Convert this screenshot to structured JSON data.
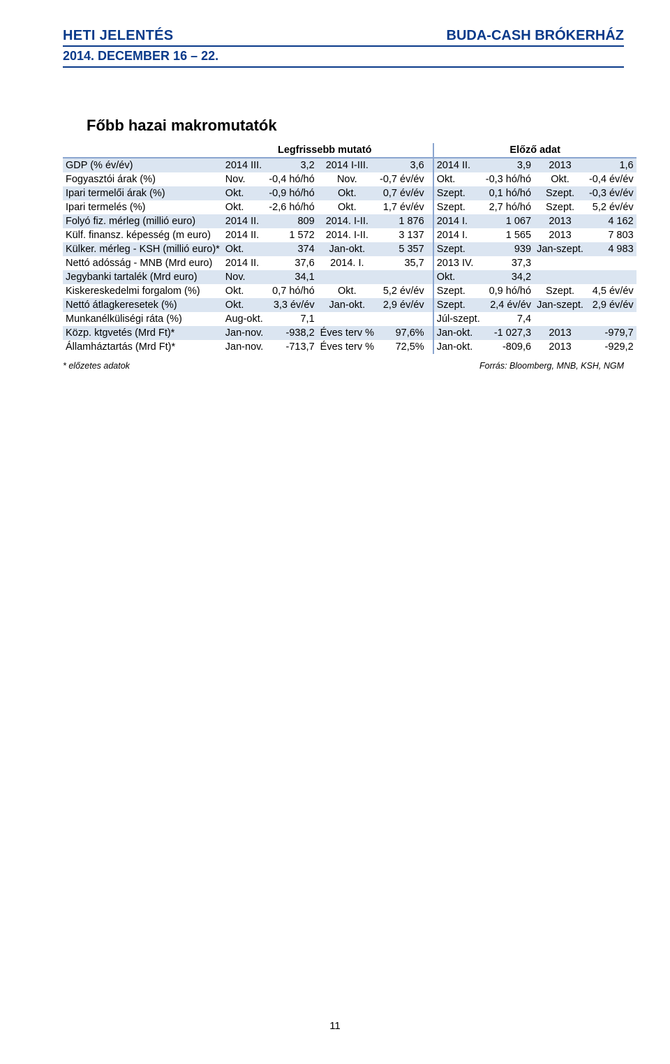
{
  "header": {
    "left_word1": "H",
    "left_rest1": "ETI",
    "left_word2": "J",
    "left_rest2": "ELENTÉS",
    "right_word1": "B",
    "right_rest1": "UDA",
    "right_dash": "-C",
    "right_rest2": "ASH",
    "right_word3": "B",
    "right_rest3": "RÓKERHÁZ",
    "sub": "2014. DECEMBER 16 – 22."
  },
  "section_title": "Főbb hazai makromutatók",
  "table": {
    "header_left": "Legfrissebb mutató",
    "header_right": "Előző adat",
    "rows": [
      {
        "label": "GDP (% év/év)",
        "a": "2014 III.",
        "b": "3,2",
        "c": "2014 I-III.",
        "d": "3,6",
        "e": "2014 II.",
        "f": "3,9",
        "g": "2013",
        "h": "1,6"
      },
      {
        "label": "Fogyasztói árak (%)",
        "a": "Nov.",
        "b": "-0,4 hó/hó",
        "c": "Nov.",
        "d": "-0,7 év/év",
        "e": "Okt.",
        "f": "-0,3 hó/hó",
        "g": "Okt.",
        "h": "-0,4 év/év"
      },
      {
        "label": "Ipari termelői árak (%)",
        "a": "Okt.",
        "b": "-0,9 hó/hó",
        "c": "Okt.",
        "d": "0,7 év/év",
        "e": "Szept.",
        "f": "0,1 hó/hó",
        "g": "Szept.",
        "h": "-0,3 év/év"
      },
      {
        "label": "Ipari termelés (%)",
        "a": "Okt.",
        "b": "-2,6 hó/hó",
        "c": "Okt.",
        "d": "1,7 év/év",
        "e": "Szept.",
        "f": "2,7 hó/hó",
        "g": "Szept.",
        "h": "5,2 év/év"
      },
      {
        "label": "Folyó fiz. mérleg (millió euro)",
        "a": "2014 II.",
        "b": "809",
        "c": "2014. I-II.",
        "d": "1 876",
        "e": "2014 I.",
        "f": "1 067",
        "g": "2013",
        "h": "4 162"
      },
      {
        "label": "Külf. finansz. képesség (m euro)",
        "a": "2014 II.",
        "b": "1 572",
        "c": "2014. I-II.",
        "d": "3 137",
        "e": "2014 I.",
        "f": "1 565",
        "g": "2013",
        "h": "7 803"
      },
      {
        "label": "Külker. mérleg - KSH (millió euro)*",
        "a": "Okt.",
        "b": "374",
        "c": "Jan-okt.",
        "d": "5 357",
        "e": "Szept.",
        "f": "939",
        "g": "Jan-szept.",
        "h": "4 983"
      },
      {
        "label": "Nettó adósság - MNB (Mrd euro)",
        "a": "2014 II.",
        "b": "37,6",
        "c": "2014. I.",
        "d": "35,7",
        "e": "2013 IV.",
        "f": "37,3",
        "g": "",
        "h": ""
      },
      {
        "label": "Jegybanki tartalék (Mrd euro)",
        "a": "Nov.",
        "b": "34,1",
        "c": "",
        "d": "",
        "e": "Okt.",
        "f": "34,2",
        "g": "",
        "h": ""
      },
      {
        "label": "Kiskereskedelmi forgalom (%)",
        "a": "Okt.",
        "b": "0,7 hó/hó",
        "c": "Okt.",
        "d": "5,2 év/év",
        "e": "Szept.",
        "f": "0,9 hó/hó",
        "g": "Szept.",
        "h": "4,5 év/év"
      },
      {
        "label": "Nettó átlagkeresetek (%)",
        "a": "Okt.",
        "b": "3,3 év/év",
        "c": "Jan-okt.",
        "d": "2,9 év/év",
        "e": "Szept.",
        "f": "2,4 év/év",
        "g": "Jan-szept.",
        "h": "2,9 év/év"
      },
      {
        "label": "Munkanélküliségi ráta (%)",
        "a": "Aug-okt.",
        "b": "7,1",
        "c": "",
        "d": "",
        "e": "Júl-szept.",
        "f": "7,4",
        "g": "",
        "h": ""
      },
      {
        "label": "Közp. ktgvetés (Mrd Ft)*",
        "a": "Jan-nov.",
        "b": "-938,2",
        "c": "Éves terv %",
        "d": "97,6%",
        "e": "Jan-okt.",
        "f": "-1 027,3",
        "g": "2013",
        "h": "-979,7"
      },
      {
        "label": "Államháztartás (Mrd Ft)*",
        "a": "Jan-nov.",
        "b": "-713,7",
        "c": "Éves terv %",
        "d": "72,5%",
        "e": "Jan-okt.",
        "f": "-809,6",
        "g": "2013",
        "h": "-929,2"
      }
    ],
    "footnote_left": "* előzetes adatok",
    "footnote_right": "Forrás: Bloomberg, MNB, KSH, NGM"
  },
  "page_number": "11",
  "colors": {
    "brand": "#0a3a8a",
    "band_even": "#dbe5f1",
    "band_odd": "#ffffff",
    "sep": "#8aa5cf"
  }
}
